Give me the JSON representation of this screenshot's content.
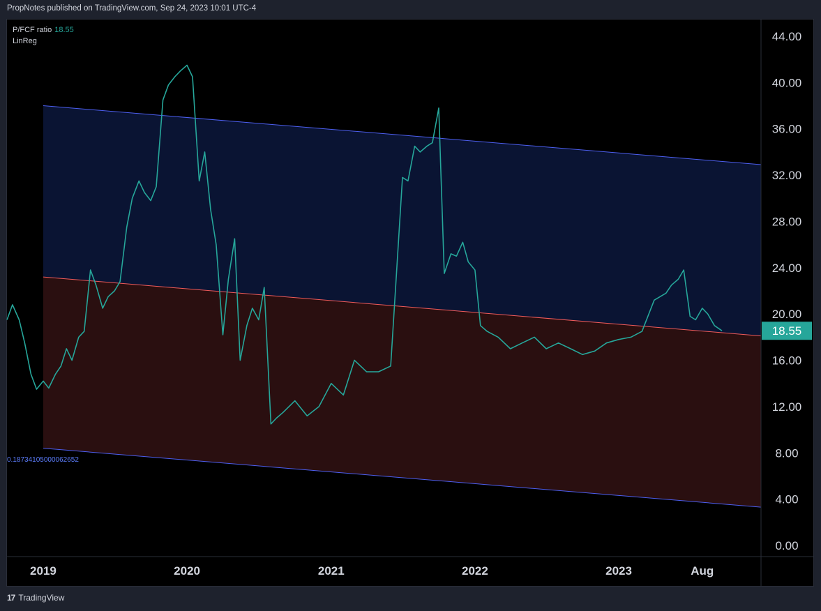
{
  "header": {
    "published": "PropNotes published on TradingView.com, Sep 24, 2023 10:01 UTC-4"
  },
  "legend": {
    "series_name": "P/FCF ratio",
    "series_value": "18.55",
    "indicator": "LinReg"
  },
  "reg_label": "0.18734105000062652",
  "footer": {
    "logo_mark": "17",
    "brand": "TradingView"
  },
  "colors": {
    "line": "#26a69a",
    "upper_fill": "#0a1433",
    "lower_fill": "#2a0f10",
    "channel": "#4d5ff0",
    "mid": "#f05b5b",
    "axis_text": "#d1d4dc"
  },
  "chart_data": {
    "type": "line",
    "series": [
      {
        "name": "P/FCF ratio",
        "x": [
          "2018-10-01",
          "2018-10-15",
          "2018-11-01",
          "2018-11-15",
          "2018-12-01",
          "2018-12-15",
          "2019-01-01",
          "2019-01-15",
          "2019-02-01",
          "2019-02-15",
          "2019-03-01",
          "2019-03-15",
          "2019-04-01",
          "2019-04-15",
          "2019-05-01",
          "2019-05-15",
          "2019-06-01",
          "2019-06-15",
          "2019-07-01",
          "2019-07-15",
          "2019-08-01",
          "2019-08-15",
          "2019-09-01",
          "2019-09-15",
          "2019-10-01",
          "2019-10-15",
          "2019-11-01",
          "2019-11-15",
          "2019-12-01",
          "2019-12-15",
          "2020-01-01",
          "2020-01-15",
          "2020-02-01",
          "2020-02-15",
          "2020-03-01",
          "2020-03-15",
          "2020-04-01",
          "2020-04-15",
          "2020-05-01",
          "2020-05-15",
          "2020-06-01",
          "2020-06-15",
          "2020-07-01",
          "2020-07-15",
          "2020-08-01",
          "2020-08-15",
          "2020-09-01",
          "2020-10-01",
          "2020-11-01",
          "2020-12-01",
          "2021-01-01",
          "2021-02-01",
          "2021-03-01",
          "2021-04-01",
          "2021-05-01",
          "2021-06-01",
          "2021-07-01",
          "2021-07-15",
          "2021-08-01",
          "2021-08-15",
          "2021-09-01",
          "2021-09-15",
          "2021-10-01",
          "2021-10-15",
          "2021-11-01",
          "2021-11-15",
          "2021-12-01",
          "2021-12-15",
          "2022-01-01",
          "2022-01-15",
          "2022-02-01",
          "2022-03-01",
          "2022-04-01",
          "2022-05-01",
          "2022-06-01",
          "2022-07-01",
          "2022-08-01",
          "2022-09-01",
          "2022-10-01",
          "2022-11-01",
          "2022-12-01",
          "2023-01-01",
          "2023-02-01",
          "2023-03-01",
          "2023-04-01",
          "2023-05-01",
          "2023-05-15",
          "2023-06-01",
          "2023-06-15",
          "2023-07-01",
          "2023-07-15",
          "2023-08-01",
          "2023-08-15",
          "2023-09-01",
          "2023-09-20"
        ],
        "y": [
          19.5,
          20.8,
          19.5,
          17.5,
          14.8,
          13.5,
          14.2,
          13.6,
          14.8,
          15.5,
          17,
          16,
          18,
          18.5,
          23.8,
          22.5,
          20.5,
          21.5,
          22,
          22.8,
          27.5,
          30,
          31.5,
          30.5,
          29.8,
          31,
          38.5,
          39.8,
          40.5,
          41,
          41.5,
          40.5,
          31.5,
          34,
          29,
          26,
          18.2,
          23,
          26.5,
          16,
          19,
          20.5,
          19.5,
          22.3,
          10.5,
          11,
          11.5,
          12.5,
          11.2,
          12,
          14,
          13,
          16,
          15,
          15,
          15.5,
          31.8,
          31.5,
          34.5,
          34,
          34.5,
          34.8,
          37.8,
          23.5,
          25.2,
          25,
          26.2,
          24.5,
          23.8,
          19,
          18.5,
          18,
          17,
          17.5,
          18,
          17,
          17.5,
          17,
          16.5,
          16.8,
          17.5,
          17.8,
          18,
          18.5,
          21.2,
          21.8,
          22.5,
          23,
          23.8,
          19.8,
          19.5,
          20.5,
          20,
          19,
          18.55
        ]
      }
    ],
    "regression": {
      "start_x": "2019-01-01",
      "end_x": "2023-12-31",
      "mid_start": 23.2,
      "mid_end": 18.1,
      "upper_start": 38,
      "upper_end": 32.9,
      "lower_start": 8.4,
      "lower_end": 3.3
    },
    "yaxis": {
      "ticks": [
        "44.00",
        "40.00",
        "36.00",
        "32.00",
        "28.00",
        "24.00",
        "20.00",
        "16.00",
        "12.00",
        "8.00",
        "4.00",
        "0.00"
      ],
      "ylim": [
        0,
        44
      ]
    },
    "xaxis": {
      "ticks": [
        "2019",
        "2020",
        "2021",
        "2022",
        "2023",
        "Aug"
      ],
      "tick_x": [
        "2019-01-01",
        "2020-01-01",
        "2021-01-01",
        "2022-01-01",
        "2023-01-01",
        "2023-08-01"
      ]
    },
    "last_value_label": "18.55",
    "title": "",
    "xlabel": "",
    "ylabel": ""
  }
}
